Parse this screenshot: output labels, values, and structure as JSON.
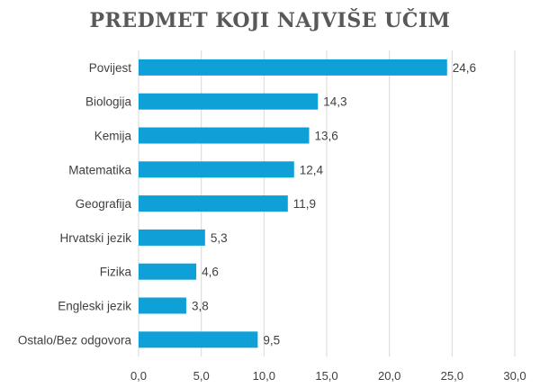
{
  "chart_data": {
    "type": "bar",
    "orientation": "horizontal",
    "title": "PREDMET KOJI NAJVIŠE UČIM",
    "categories": [
      "Povijest",
      "Biologija",
      "Kemija",
      "Matematika",
      "Geografija",
      "Hrvatski jezik",
      "Fizika",
      "Engleski jezik",
      "Ostalo/Bez odgovora"
    ],
    "values": [
      24.6,
      14.3,
      13.6,
      12.4,
      11.9,
      5.3,
      4.6,
      3.8,
      9.5
    ],
    "value_labels": [
      "24,6",
      "14,3",
      "13,6",
      "12,4",
      "11,9",
      "5,3",
      "4,6",
      "3,8",
      "9,5"
    ],
    "xlim": [
      0,
      30
    ],
    "xticks": [
      0,
      5,
      10,
      15,
      20,
      25,
      30
    ],
    "xtick_labels": [
      "0,0",
      "5,0",
      "10,0",
      "15,0",
      "20,0",
      "25,0",
      "30,0"
    ],
    "grid": "vertical",
    "bar_color": "#0fa0d8"
  }
}
